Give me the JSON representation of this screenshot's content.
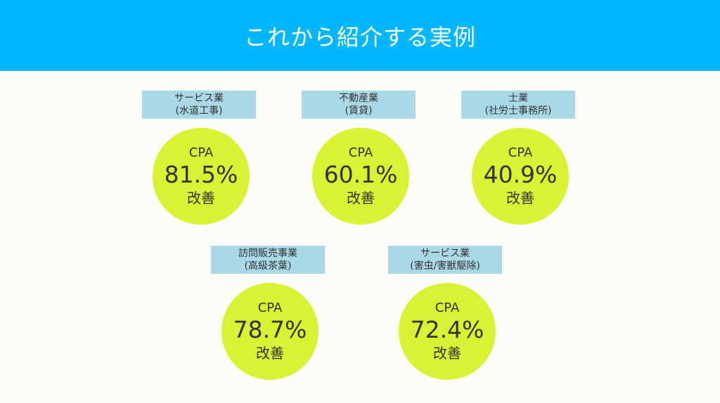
{
  "title": "これから紹介する実例",
  "colors": {
    "header_background": "#00b7ff",
    "label_background": "#a9d9e6",
    "circle_fill": "#d9f233",
    "page_background": "#fdfdf7"
  },
  "cases": [
    {
      "industry": "サービス業",
      "detail": "(水道工事)",
      "metric": "CPA",
      "value": "81.5%",
      "note": "改善"
    },
    {
      "industry": "不動産業",
      "detail": "(賃貸)",
      "metric": "CPA",
      "value": "60.1%",
      "note": "改善"
    },
    {
      "industry": "士業",
      "detail": "(社労士事務所)",
      "metric": "CPA",
      "value": "40.9%",
      "note": "改善"
    },
    {
      "industry": "訪問販売事業",
      "detail": "(高級茶葉)",
      "metric": "CPA",
      "value": "78.7%",
      "note": "改善"
    },
    {
      "industry": "サービス業",
      "detail": "(害虫/害獣駆除)",
      "metric": "CPA",
      "value": "72.4%",
      "note": "改善"
    }
  ]
}
